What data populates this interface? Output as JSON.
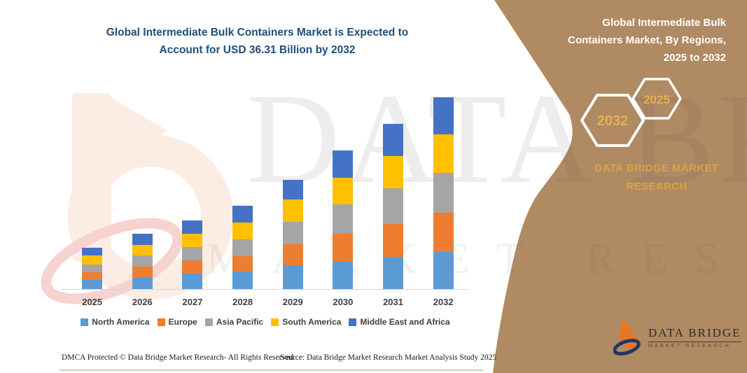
{
  "main_chart": {
    "title_lines": {
      "line1": "Global Intermediate Bulk Containers Market is Expected to",
      "line2": "Account for USD 36.31 Billion by 2032"
    }
  },
  "chart_data": {
    "type": "bar",
    "stacked": true,
    "title": "Global Intermediate Bulk Containers Market is Expected to Account for USD 36.31 Billion by 2032",
    "unit": "USD Billion",
    "categories": [
      "2025",
      "2026",
      "2027",
      "2028",
      "2029",
      "2030",
      "2031",
      "2032"
    ],
    "series": [
      {
        "name": "North America",
        "color": "#5B9BD5",
        "values": [
          1.68,
          2.12,
          2.87,
          3.27,
          4.55,
          5.21,
          6.09,
          6.97
        ]
      },
      {
        "name": "Europe",
        "color": "#ED7D31",
        "values": [
          1.55,
          2.12,
          2.55,
          3.0,
          3.97,
          5.29,
          6.27,
          7.5
        ]
      },
      {
        "name": "Asia Pacific",
        "color": "#A5A5A5",
        "values": [
          1.46,
          2.08,
          2.51,
          3.18,
          4.19,
          5.52,
          6.75,
          7.5
        ]
      },
      {
        "name": "South America",
        "color": "#FFC000",
        "values": [
          1.63,
          2.08,
          2.57,
          3.08,
          4.19,
          5.07,
          6.03,
          7.28
        ]
      },
      {
        "name": "Middle East and Africa",
        "color": "#4472C4",
        "values": [
          1.55,
          2.02,
          2.42,
          3.18,
          3.74,
          5.07,
          6.09,
          7.06
        ]
      }
    ],
    "totals": [
      7.87,
      10.42,
      12.92,
      15.71,
      20.64,
      26.16,
      31.23,
      36.31
    ],
    "xlabel": "",
    "ylabel": "",
    "y_axis_visible": false,
    "gridlines": false,
    "legend_position": "bottom"
  },
  "side_panel": {
    "background": "#B08A62",
    "heading_lines": {
      "line1": "Global Intermediate Bulk",
      "line2": "Containers Market, By Regions,",
      "line3": "2025 to 2032"
    },
    "hexagons": [
      {
        "label": "2032"
      },
      {
        "label": "2025"
      }
    ],
    "brand_caption_lines": {
      "line1": "DATA BRIDGE MARKET",
      "line2": "RESEARCH"
    },
    "accent_text_color": "#E7B04E",
    "logo": {
      "title": "DATA BRIDGE",
      "subtitle": "MARKET RESEARCH"
    }
  },
  "watermark": {
    "line1": "DATA BRIDGE",
    "line2": "MARKET RESEARCH"
  },
  "footer": {
    "dmca": "DMCA Protected © Data Bridge Market Research-  All Rights Reserved.",
    "source": "Source: Data Bridge Market Research  Market Analysis Study 2025"
  }
}
